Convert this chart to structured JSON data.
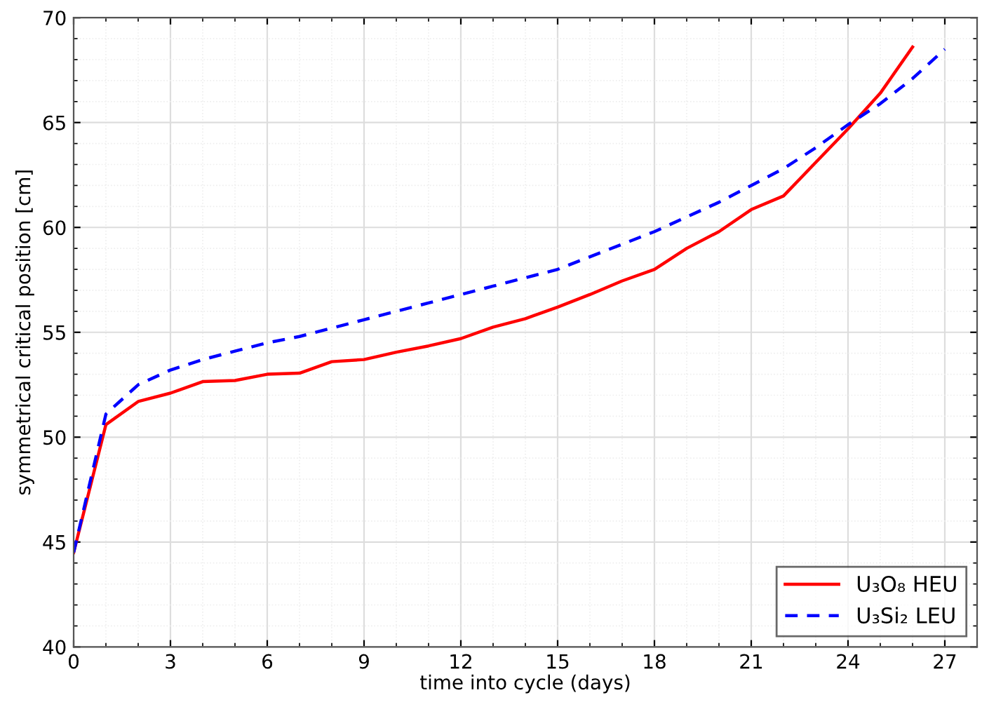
{
  "chart_data": {
    "type": "line",
    "xlabel": "time into cycle (days)",
    "ylabel": "symmetrical critical position [cm]",
    "xlim": [
      0,
      28
    ],
    "xticks": [
      0,
      3,
      6,
      9,
      12,
      15,
      18,
      21,
      24,
      27
    ],
    "ylim": [
      40,
      70
    ],
    "yticks": [
      40,
      45,
      50,
      55,
      60,
      65,
      70
    ],
    "grid": true,
    "legend": "bottom right",
    "series": [
      {
        "name": "U₃O₈ HEU",
        "color": "#ff0000",
        "line_style": "solid",
        "x": [
          0,
          1,
          2,
          3,
          4,
          5,
          6,
          7,
          8,
          9,
          10,
          11,
          12,
          13,
          14,
          15,
          16,
          17,
          18,
          19,
          20,
          21,
          22,
          23,
          24,
          25,
          26
        ],
        "values": [
          44.5,
          50.6,
          51.7,
          52.1,
          52.65,
          52.7,
          53.0,
          53.05,
          53.6,
          53.7,
          54.05,
          54.35,
          54.7,
          55.25,
          55.65,
          56.2,
          56.8,
          57.45,
          58.0,
          59.0,
          59.8,
          60.85,
          61.5,
          63.1,
          64.7,
          66.4,
          68.6
        ]
      },
      {
        "name": "U₃Si₂ LEU",
        "color": "#0000ff",
        "line_style": "dashed",
        "x": [
          0,
          1,
          2,
          3,
          4,
          5,
          6,
          7,
          8,
          9,
          10,
          11,
          12,
          13,
          14,
          15,
          16,
          17,
          18,
          19,
          20,
          21,
          22,
          23,
          24,
          25,
          26,
          27
        ],
        "values": [
          44.5,
          51.1,
          52.5,
          53.2,
          53.7,
          54.1,
          54.5,
          54.8,
          55.2,
          55.6,
          56.0,
          56.4,
          56.8,
          57.2,
          57.6,
          58.0,
          58.6,
          59.2,
          59.8,
          60.5,
          61.2,
          62.0,
          62.8,
          63.8,
          64.9,
          65.9,
          67.1,
          68.5
        ]
      }
    ]
  }
}
